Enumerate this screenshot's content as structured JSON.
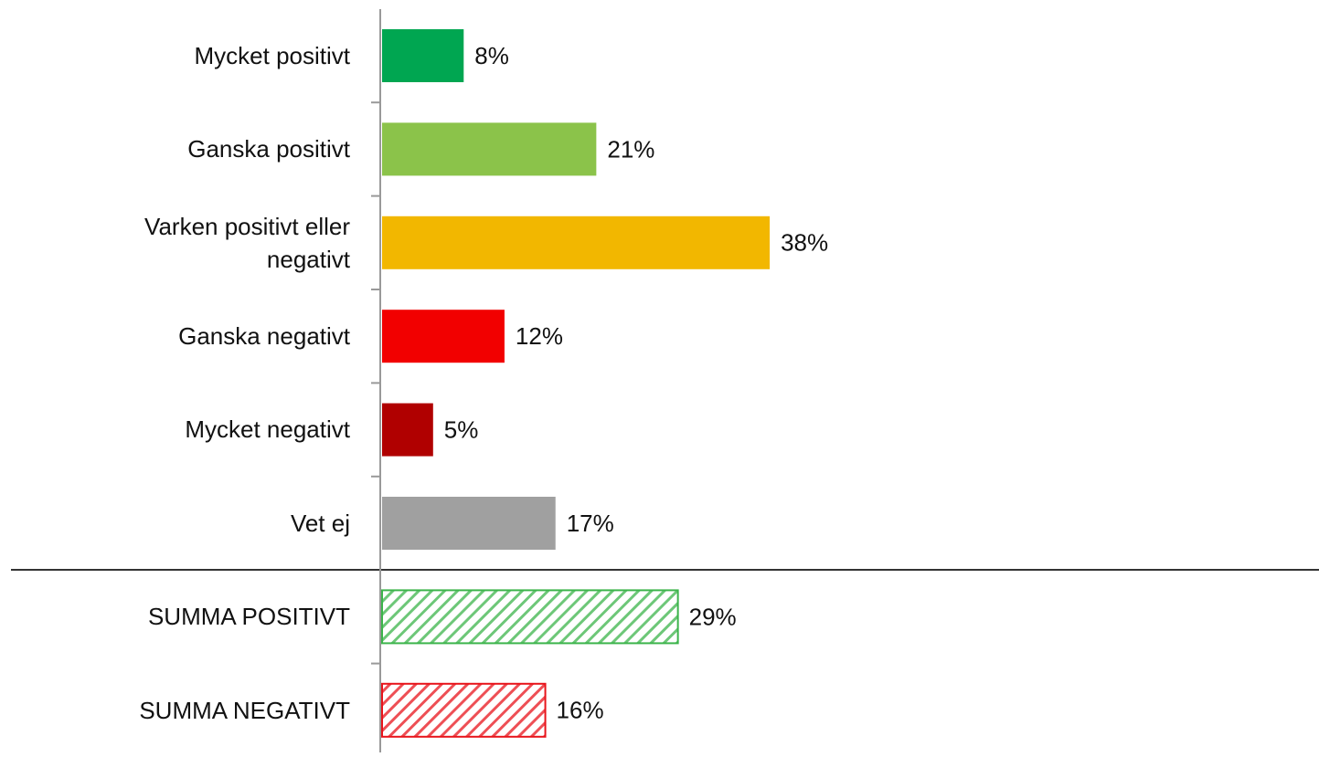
{
  "chart_data": {
    "type": "hbar",
    "categories": [
      "Mycket positivt",
      "Ganska positivt",
      "Varken positivt eller negativt",
      "Ganska negativt",
      "Mycket negativt",
      "Vet ej",
      "SUMMA POSITIVT",
      "SUMMA NEGATIVT"
    ],
    "values": [
      8,
      21,
      38,
      12,
      5,
      17,
      29,
      16
    ],
    "value_labels": [
      "8%",
      "21%",
      "38%",
      "12%",
      "5%",
      "17%",
      "29%",
      "16%"
    ],
    "colors": [
      "#00a651",
      "#8bc34a",
      "#f2b700",
      "#f20000",
      "#b00000",
      "#a0a0a0",
      "#3cb44b",
      "#e8141b"
    ],
    "hatched": [
      false,
      false,
      false,
      false,
      false,
      false,
      true,
      true
    ]
  }
}
